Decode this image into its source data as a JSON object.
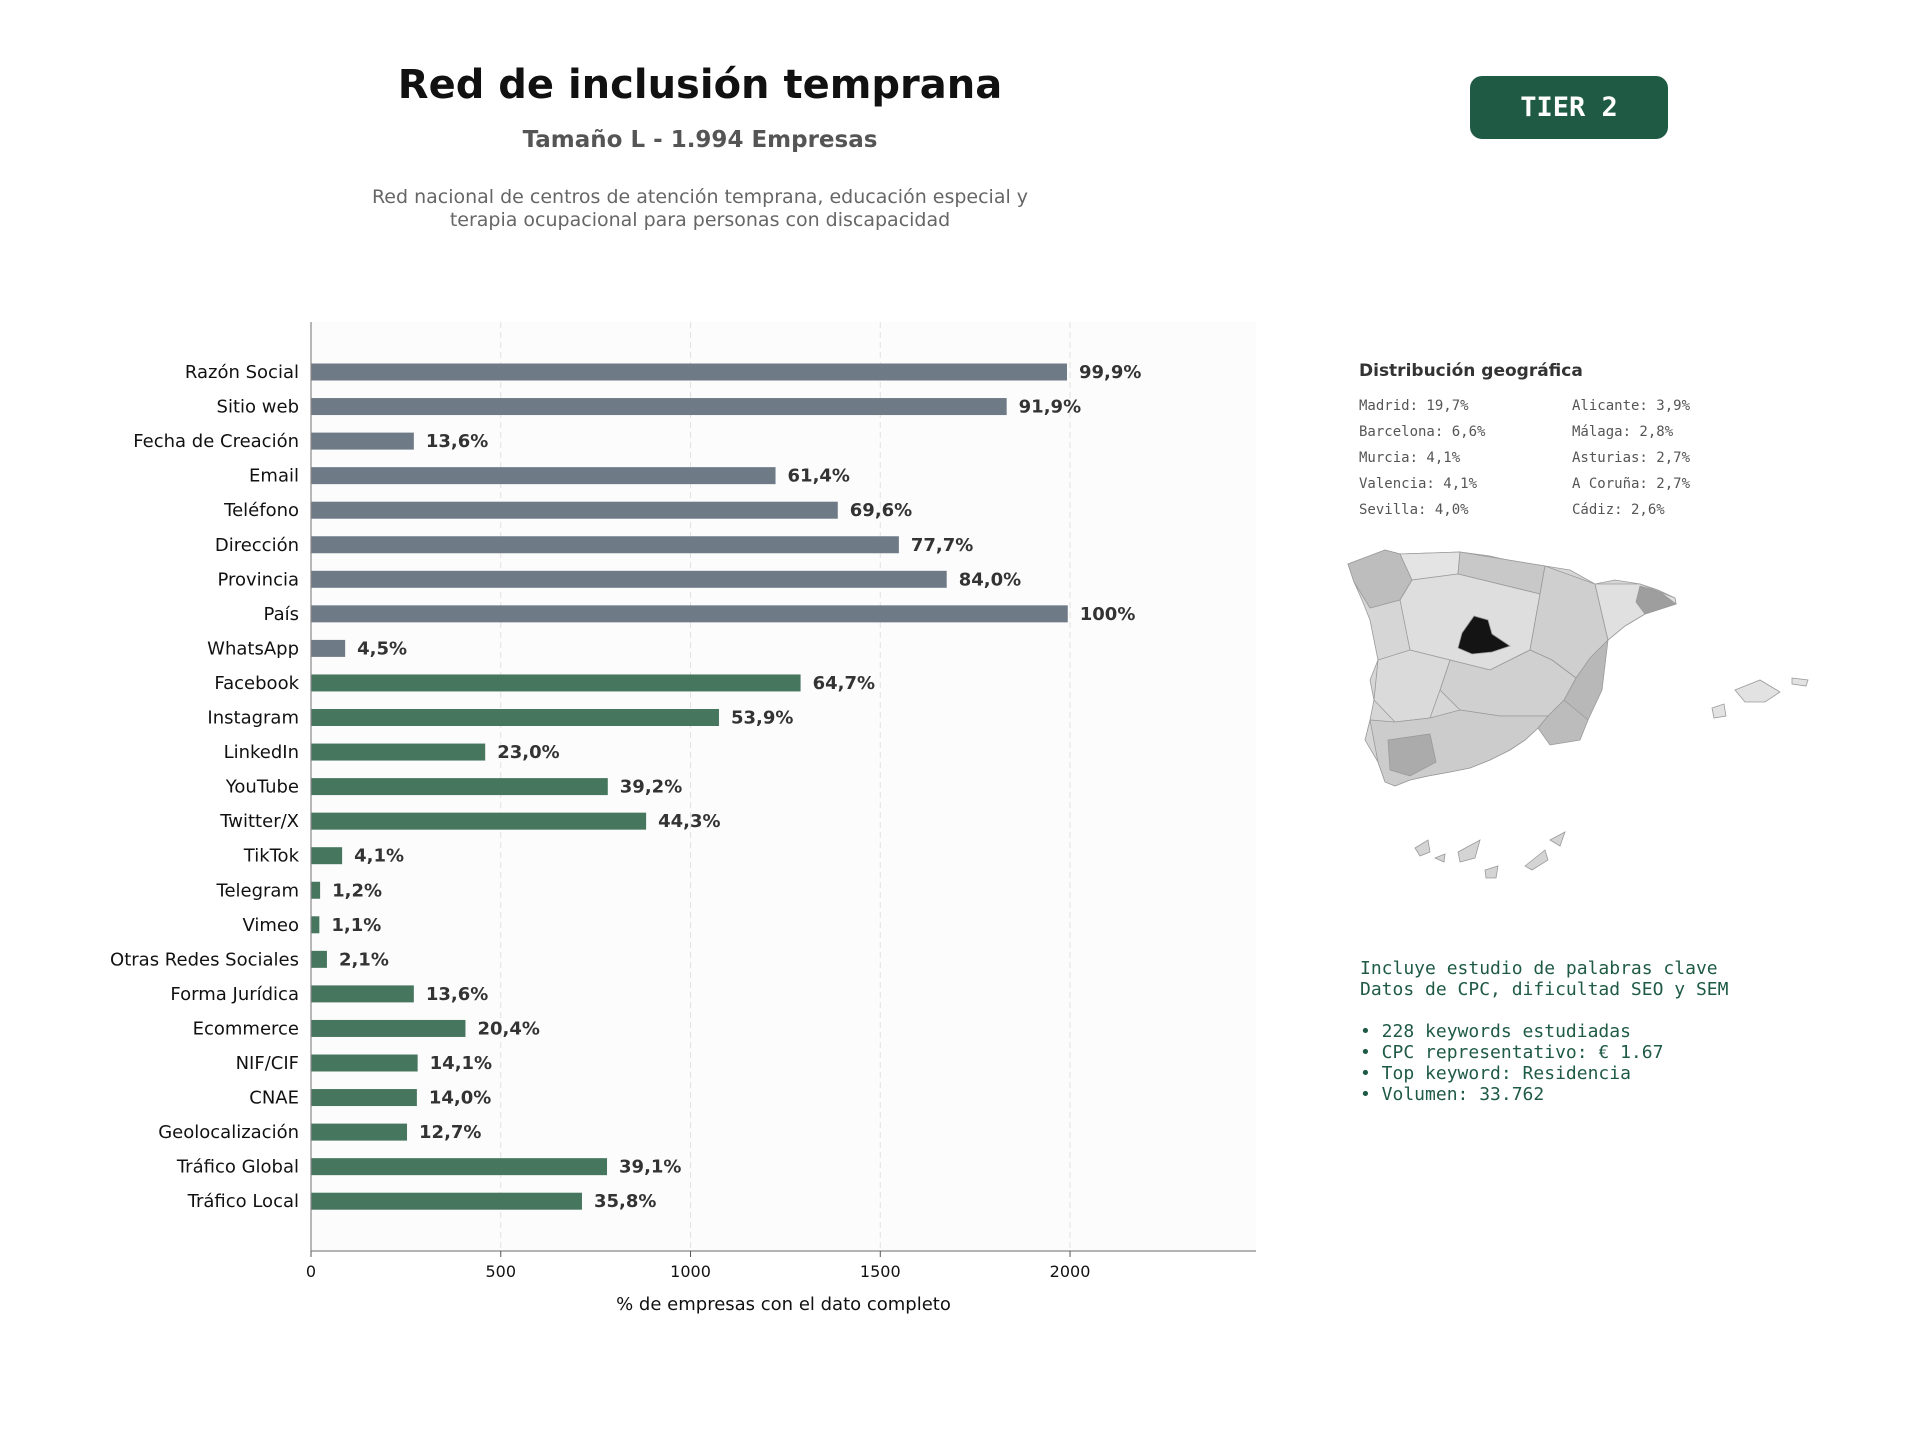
{
  "header": {
    "title": "Red de inclusión temprana",
    "subtitle": "Tamaño L - 1.994 Empresas",
    "description_line1": "Red nacional de centros de atención temprana, educación especial y",
    "description_line2": "terapia ocupacional para personas con discapacidad",
    "tier_label": "TIER 2"
  },
  "chart_data": {
    "type": "bar",
    "orientation": "horizontal",
    "xlabel": "% de empresas con el dato completo",
    "ylabel": "",
    "xlim": [
      0,
      2490
    ],
    "xticks": [
      0,
      500,
      1000,
      1500,
      2000
    ],
    "grid": true,
    "categories": [
      "Razón Social",
      "Sitio web",
      "Fecha de Creación",
      "Email",
      "Teléfono",
      "Dirección",
      "Provincia",
      "País",
      "WhatsApp",
      "Facebook",
      "Instagram",
      "LinkedIn",
      "YouTube",
      "Twitter/X",
      "TikTok",
      "Telegram",
      "Vimeo",
      "Otras Redes Sociales",
      "Forma Jurídica",
      "Ecommerce",
      "NIF/CIF",
      "CNAE",
      "Geolocalización",
      "Tráfico Global",
      "Tráfico Local"
    ],
    "values": [
      1992,
      1833,
      271,
      1224,
      1388,
      1549,
      1675,
      1994,
      90,
      1290,
      1075,
      459,
      782,
      883,
      82,
      24,
      22,
      42,
      271,
      407,
      281,
      279,
      253,
      780,
      714
    ],
    "labels": [
      "99,9%",
      "91,9%",
      "13,6%",
      "61,4%",
      "69,6%",
      "77,7%",
      "84,0%",
      "100%",
      "4,5%",
      "64,7%",
      "53,9%",
      "23,0%",
      "39,2%",
      "44,3%",
      "4,1%",
      "1,2%",
      "1,1%",
      "2,1%",
      "13,6%",
      "20,4%",
      "14,1%",
      "14,0%",
      "12,7%",
      "39,1%",
      "35,8%"
    ],
    "groups": [
      "basic",
      "basic",
      "basic",
      "basic",
      "basic",
      "basic",
      "basic",
      "basic",
      "basic",
      "social",
      "social",
      "social",
      "social",
      "social",
      "social",
      "social",
      "social",
      "social",
      "social",
      "social",
      "social",
      "social",
      "social",
      "social",
      "social"
    ],
    "colors": {
      "basic": "#6e7a86",
      "social": "#47765f"
    }
  },
  "geo": {
    "title": "Distribución geográfica",
    "left": [
      "Madrid: 19,7%",
      "Barcelona: 6,6%",
      "Murcia: 4,1%",
      "Valencia: 4,1%",
      "Sevilla: 4,0%"
    ],
    "right": [
      "Alicante: 3,9%",
      "Málaga: 2,8%",
      "Asturias: 2,7%",
      "A Coruña: 2,7%",
      "Cádiz: 2,6%"
    ]
  },
  "keywords": {
    "line1": "Incluye estudio de palabras clave",
    "line2": "Datos de CPC, dificultad SEO y SEM",
    "bullets": [
      "• 228 keywords estudiadas",
      "• CPC representativo: € 1.67",
      "• Top keyword: Residencia",
      "• Volumen: 33.762"
    ]
  }
}
